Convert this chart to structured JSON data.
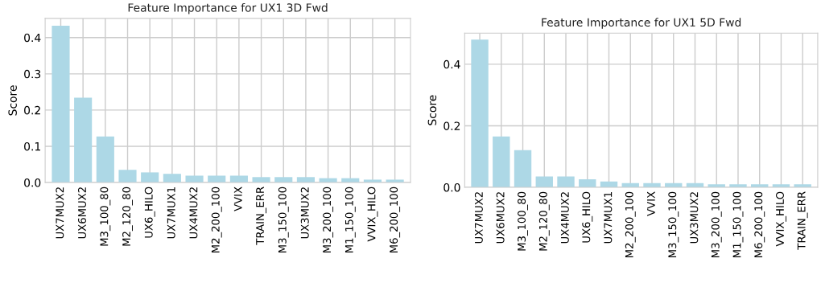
{
  "chart_data": [
    {
      "type": "bar",
      "title": "Feature Importance for UX1 3D Fwd",
      "ylabel": "Score",
      "categories": [
        "UX7MUX2",
        "UX6MUX2",
        "M3_100_80",
        "M2_120_80",
        "UX6_HILO",
        "UX7MUX1",
        "UX4MUX2",
        "M2_200_100",
        "VVIX",
        "TRAIN_ERR",
        "M3_150_100",
        "UX3MUX2",
        "M3_200_100",
        "M1_150_100",
        "VVIX_HILO",
        "M6_200_100"
      ],
      "values": [
        0.433,
        0.234,
        0.127,
        0.035,
        0.028,
        0.024,
        0.019,
        0.019,
        0.019,
        0.015,
        0.015,
        0.015,
        0.012,
        0.012,
        0.008,
        0.008
      ],
      "color": "#add8e6",
      "ylim": [
        0,
        0.453
      ],
      "yticks": [
        {
          "value": 0,
          "label": "0.0"
        },
        0.1,
        0.2,
        0.3,
        0.4
      ],
      "grid": true
    },
    {
      "type": "bar",
      "title": "Feature Importance for UX1 5D Fwd",
      "ylabel": "Score",
      "categories": [
        "UX7MUX2",
        "UX6MUX2",
        "M3_100_80",
        "M2_120_80",
        "UX4MUX2",
        "UX6_HILO",
        "UX7MUX1",
        "M2_200_100",
        "VVIX",
        "M3_150_100",
        "UX3MUX2",
        "M3_200_100",
        "M1_150_100",
        "M6_200_100",
        "VVIX_HILO",
        "TRAIN_ERR"
      ],
      "values": [
        0.48,
        0.165,
        0.121,
        0.035,
        0.035,
        0.026,
        0.019,
        0.014,
        0.014,
        0.014,
        0.014,
        0.01,
        0.01,
        0.01,
        0.01,
        0.01
      ],
      "color": "#add8e6",
      "ylim": [
        0,
        0.501
      ],
      "yticks": [
        {
          "value": 0,
          "label": "0.0"
        },
        0.2,
        0.4
      ],
      "grid": true
    }
  ]
}
